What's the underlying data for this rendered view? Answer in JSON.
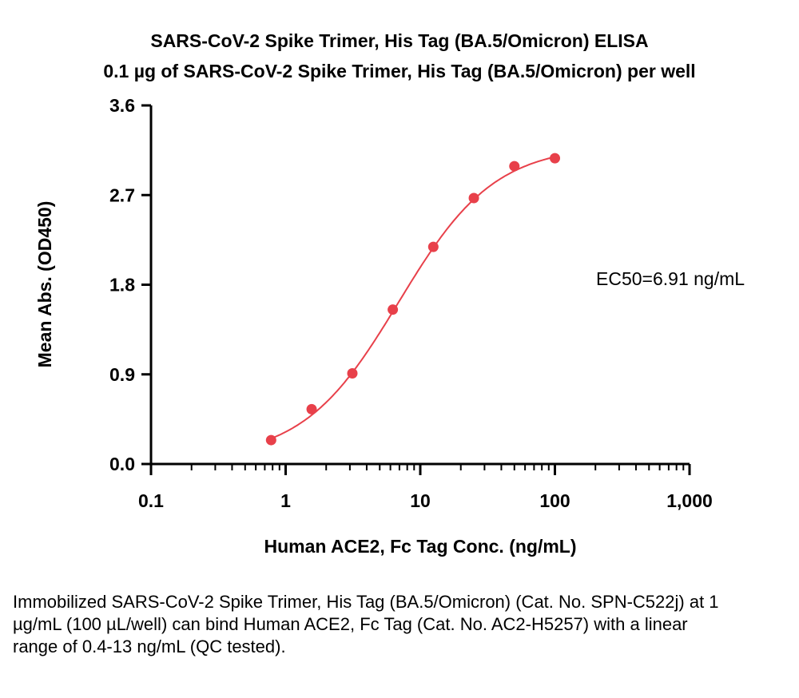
{
  "chart_data": {
    "type": "scatter",
    "title": "SARS-CoV-2 Spike Trimer, His Tag (BA.5/Omicron) ELISA",
    "subtitle": "0.1 µg of SARS-CoV-2 Spike Trimer, His Tag (BA.5/Omicron) per well",
    "xlabel": "Human ACE2, Fc Tag Conc. (ng/mL)",
    "ylabel": "Mean Abs. (OD450)",
    "xscale": "log",
    "xlim": [
      0.1,
      1000
    ],
    "ylim": [
      0,
      3.6
    ],
    "xticks": [
      0.1,
      1,
      10,
      100,
      1000
    ],
    "xtick_labels": [
      "0.1",
      "1",
      "10",
      "100",
      "1,000"
    ],
    "yticks": [
      0,
      0.9,
      1.8,
      2.7,
      3.6
    ],
    "ytick_labels": [
      "0.0",
      "0.9",
      "1.8",
      "2.7",
      "3.6"
    ],
    "series": [
      {
        "x": [
          0.78,
          1.56,
          3.13,
          6.25,
          12.5,
          25,
          50,
          100
        ],
        "y": [
          0.24,
          0.55,
          0.91,
          1.55,
          2.18,
          2.67,
          2.99,
          3.07
        ],
        "color": "#e8404a"
      }
    ],
    "fit_curve": "4PL",
    "annotation": "EC50=6.91 ng/mL",
    "grid": false,
    "legend": "none"
  },
  "caption": "Immobilized SARS-CoV-2 Spike Trimer, His Tag (BA.5/Omicron) (Cat. No. SPN-C522j) at 1 µg/mL (100 µL/well) can bind Human ACE2, Fc Tag (Cat. No. AC2-H5257) with a linear range of 0.4-13 ng/mL (QC tested)."
}
